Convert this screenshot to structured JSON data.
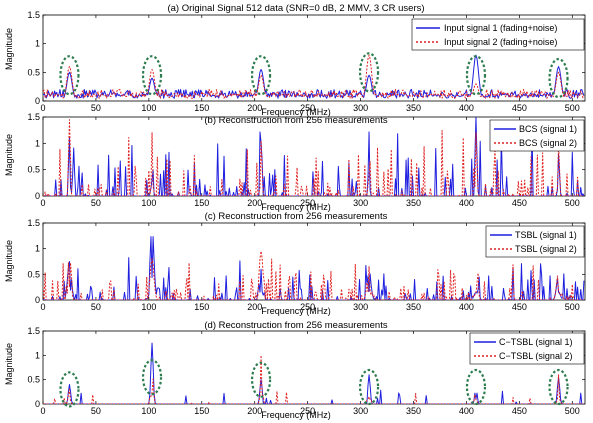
{
  "chart_data": [
    {
      "type": "line",
      "title": "(a) Original Signal 512 data (SNR=0 dB, 2 MMV, 3 CR users)",
      "xlabel": "Frequency (MHz)",
      "ylabel": "Magnitude",
      "xlim": [
        0,
        512
      ],
      "ylim": [
        0,
        1.5
      ],
      "xticks": [
        0,
        50,
        100,
        150,
        200,
        250,
        300,
        350,
        400,
        450,
        500
      ],
      "yticks": [
        0,
        0.5,
        1,
        1.5
      ],
      "legend_position": "top-right",
      "series": [
        {
          "name": "Input signal 1 (fading+noise)",
          "color": "#1f1fe0",
          "style": "solid",
          "peaks": [
            [
              25,
              0.5
            ],
            [
              103,
              0.4
            ],
            [
              206,
              0.55
            ],
            [
              308,
              0.45
            ],
            [
              409,
              0.8
            ],
            [
              487,
              0.6
            ]
          ]
        },
        {
          "name": "Input signal 2 (fading+noise)",
          "color": "#e02020",
          "style": "dotted",
          "peaks": [
            [
              25,
              0.6
            ],
            [
              103,
              0.55
            ],
            [
              206,
              0.45
            ],
            [
              308,
              0.8
            ],
            [
              409,
              0.3
            ],
            [
              487,
              0.5
            ]
          ]
        }
      ],
      "annotations": [
        {
          "type": "dashed-ellipse",
          "color": "#2e7d4f",
          "x": 25,
          "y": 0.45
        },
        {
          "type": "dashed-ellipse",
          "color": "#2e7d4f",
          "x": 103,
          "y": 0.45
        },
        {
          "type": "dashed-ellipse",
          "color": "#2e7d4f",
          "x": 206,
          "y": 0.45
        },
        {
          "type": "dashed-ellipse",
          "color": "#2e7d4f",
          "x": 308,
          "y": 0.5
        },
        {
          "type": "dashed-ellipse",
          "color": "#2e7d4f",
          "x": 409,
          "y": 0.45
        },
        {
          "type": "dashed-ellipse",
          "color": "#2e7d4f",
          "x": 487,
          "y": 0.4
        }
      ]
    },
    {
      "type": "line",
      "title": "(b) Reconstruction from 256 measurements",
      "xlabel": "Frequency (MHz)",
      "ylabel": "Magnitude",
      "xlim": [
        0,
        512
      ],
      "ylim": [
        0,
        1.5
      ],
      "xticks": [
        0,
        50,
        100,
        150,
        200,
        250,
        300,
        350,
        400,
        450,
        500
      ],
      "yticks": [
        0,
        0.5,
        1,
        1.5
      ],
      "legend_position": "top-right",
      "series": [
        {
          "name": "BCS (signal 1)",
          "color": "#1f1fe0",
          "style": "solid",
          "peaks": [
            [
              25,
              1.1
            ],
            [
              103,
              1.0
            ],
            [
              206,
              0.9
            ],
            [
              308,
              0.7
            ],
            [
              409,
              1.5
            ],
            [
              487,
              0.8
            ]
          ]
        },
        {
          "name": "BCS (signal 2)",
          "color": "#e02020",
          "style": "dotted",
          "peaks": [
            [
              25,
              1.45
            ],
            [
              103,
              1.2
            ],
            [
              206,
              1.05
            ],
            [
              308,
              1.3
            ],
            [
              409,
              1.2
            ],
            [
              487,
              1.0
            ]
          ]
        }
      ],
      "annotations": []
    },
    {
      "type": "line",
      "title": "(c) Reconstruction from 256 measurements",
      "xlabel": "Frequency (MHz)",
      "ylabel": "Magnitude",
      "xlim": [
        0,
        512
      ],
      "ylim": [
        0,
        1.5
      ],
      "xticks": [
        0,
        50,
        100,
        150,
        200,
        250,
        300,
        350,
        400,
        450,
        500
      ],
      "yticks": [
        0,
        0.5,
        1,
        1.5
      ],
      "legend_position": "top-right",
      "series": [
        {
          "name": "TSBL (signal 1)",
          "color": "#1f1fe0",
          "style": "solid",
          "peaks": [
            [
              25,
              0.75
            ],
            [
              103,
              1.45
            ],
            [
              206,
              0.6
            ],
            [
              308,
              0.55
            ],
            [
              409,
              0.5
            ],
            [
              487,
              0.5
            ]
          ]
        },
        {
          "name": "TSBL (signal 2)",
          "color": "#e02020",
          "style": "dotted",
          "peaks": [
            [
              25,
              0.85
            ],
            [
              103,
              0.8
            ],
            [
              206,
              0.95
            ],
            [
              308,
              0.65
            ],
            [
              409,
              0.4
            ],
            [
              487,
              0.55
            ]
          ]
        }
      ],
      "annotations": []
    },
    {
      "type": "line",
      "title": "(d) Reconstruction from 256 measurements",
      "xlabel": "Frequency (MHz)",
      "ylabel": "Magnitude",
      "xlim": [
        0,
        512
      ],
      "ylim": [
        0,
        1.5
      ],
      "xticks": [
        0,
        50,
        100,
        150,
        200,
        250,
        300,
        350,
        400,
        450,
        500
      ],
      "yticks": [
        0,
        0.5,
        1,
        1.5
      ],
      "legend_position": "top-right",
      "series": [
        {
          "name": "C−TSBL (signal 1)",
          "color": "#1f1fe0",
          "style": "solid",
          "peaks": [
            [
              25,
              0.4
            ],
            [
              103,
              1.25
            ],
            [
              206,
              0.5
            ],
            [
              308,
              0.6
            ],
            [
              409,
              0.35
            ],
            [
              487,
              0.55
            ]
          ]
        },
        {
          "name": "C−TSBL (signal 2)",
          "color": "#e02020",
          "style": "dotted",
          "peaks": [
            [
              25,
              0.3
            ],
            [
              103,
              0.8
            ],
            [
              206,
              1.0
            ],
            [
              308,
              0.5
            ],
            [
              409,
              0.3
            ],
            [
              487,
              0.6
            ]
          ]
        }
      ],
      "annotations": [
        {
          "type": "dashed-ellipse",
          "color": "#2e7d4f",
          "x": 25,
          "y": 0.3
        },
        {
          "type": "dashed-ellipse",
          "color": "#2e7d4f",
          "x": 103,
          "y": 0.55
        },
        {
          "type": "dashed-ellipse",
          "color": "#2e7d4f",
          "x": 206,
          "y": 0.5
        },
        {
          "type": "dashed-ellipse",
          "color": "#2e7d4f",
          "x": 308,
          "y": 0.35
        },
        {
          "type": "dashed-ellipse",
          "color": "#2e7d4f",
          "x": 409,
          "y": 0.35
        },
        {
          "type": "dashed-ellipse",
          "color": "#2e7d4f",
          "x": 487,
          "y": 0.35
        }
      ]
    }
  ]
}
